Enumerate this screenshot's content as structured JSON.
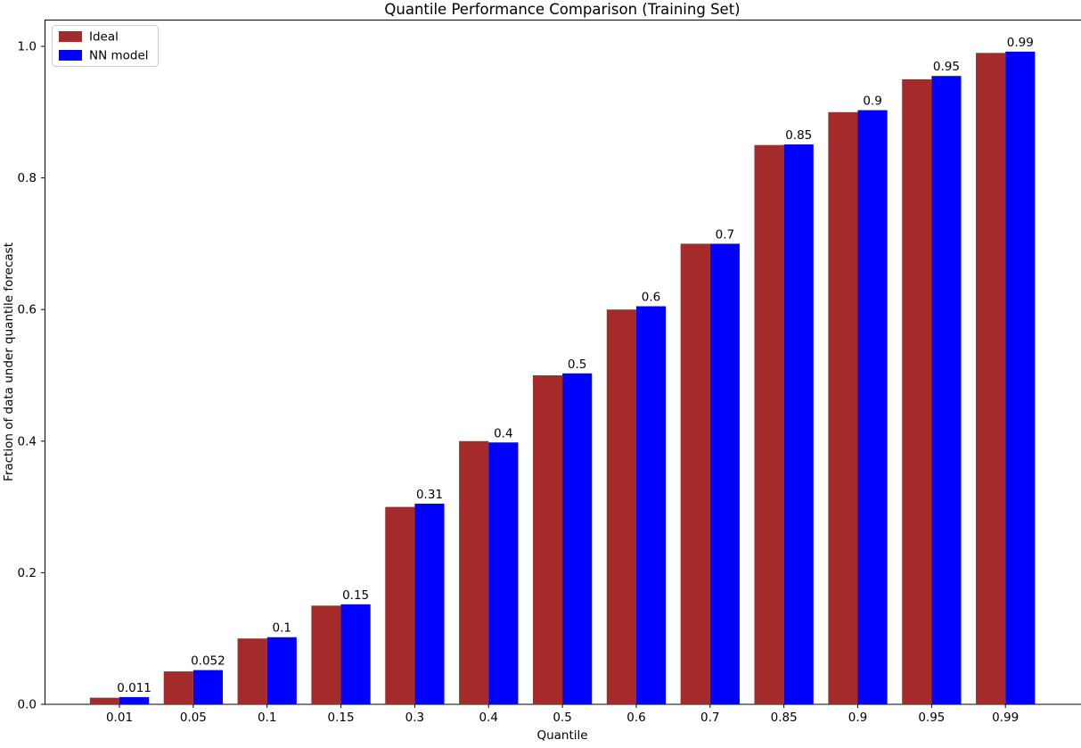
{
  "chart_data": {
    "type": "bar",
    "title": "Quantile Performance Comparison (Training Set)",
    "xlabel": "Quantile",
    "ylabel": "Fraction of data under quantile forecast",
    "categories": [
      "0.01",
      "0.05",
      "0.1",
      "0.15",
      "0.3",
      "0.4",
      "0.5",
      "0.6",
      "0.7",
      "0.85",
      "0.9",
      "0.95",
      "0.99"
    ],
    "series": [
      {
        "name": "Ideal",
        "color": "#a52a2a",
        "values": [
          0.01,
          0.05,
          0.1,
          0.15,
          0.3,
          0.4,
          0.5,
          0.6,
          0.7,
          0.85,
          0.9,
          0.95,
          0.99
        ]
      },
      {
        "name": "NN model",
        "color": "#0000ff",
        "values": [
          0.011,
          0.052,
          0.102,
          0.152,
          0.305,
          0.398,
          0.503,
          0.605,
          0.7,
          0.851,
          0.903,
          0.955,
          0.992
        ]
      }
    ],
    "bar_labels": [
      "0.011",
      "0.052",
      "0.1",
      "0.15",
      "0.31",
      "0.4",
      "0.5",
      "0.6",
      "0.7",
      "0.85",
      "0.9",
      "0.95",
      "0.99"
    ],
    "y_ticks": [
      "0.0",
      "0.2",
      "0.4",
      "0.6",
      "0.8",
      "1.0"
    ],
    "ylim": [
      0,
      1.041
    ],
    "grid": false,
    "legend_position": "upper left",
    "axis_color": "#000000",
    "legend_border_color": "#cccccc"
  }
}
